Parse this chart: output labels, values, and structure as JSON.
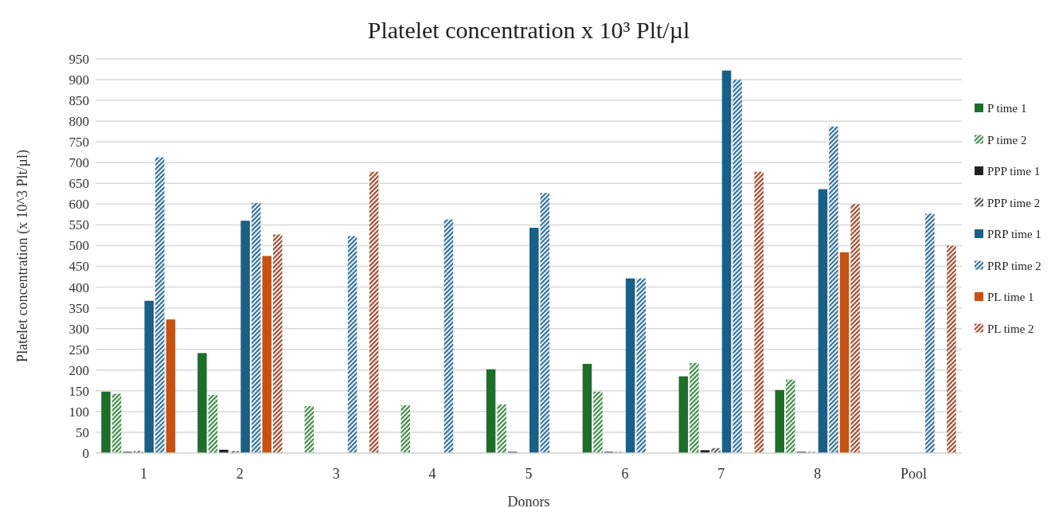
{
  "chart_data": {
    "type": "bar",
    "title": "Platelet concentration x 10³ Plt/µl",
    "xlabel": "Donors",
    "ylabel": "Platelet concentration (x 10^3 Plt/µl)",
    "categories": [
      "1",
      "2",
      "3",
      "4",
      "5",
      "6",
      "7",
      "8",
      "Pool"
    ],
    "series": [
      {
        "name": "P time 1",
        "color": "#1e6e2a",
        "values": [
          148,
          241,
          null,
          null,
          202,
          215,
          185,
          152,
          null
        ]
      },
      {
        "name": "P time 2",
        "color": "#3f8a4a",
        "values": [
          143,
          140,
          113,
          115,
          117,
          148,
          217,
          177,
          null
        ]
      },
      {
        "name": "PPP time 1",
        "color": "#222222",
        "values": [
          3,
          8,
          null,
          null,
          3,
          3,
          7,
          3,
          null
        ]
      },
      {
        "name": "PPP time 2",
        "color": "#555555",
        "values": [
          5,
          5,
          null,
          null,
          null,
          3,
          12,
          3,
          null
        ]
      },
      {
        "name": "PRP time 1",
        "color": "#1a5f85",
        "values": [
          367,
          560,
          null,
          null,
          543,
          421,
          922,
          636,
          null
        ]
      },
      {
        "name": "PRP time 2",
        "color": "#2f6f98",
        "values": [
          713,
          603,
          523,
          563,
          627,
          421,
          900,
          787,
          577
        ]
      },
      {
        "name": "PL time 1",
        "color": "#c55213",
        "values": [
          322,
          475,
          null,
          null,
          null,
          null,
          null,
          484,
          null
        ]
      },
      {
        "name": "PL time 2",
        "color": "#9e4a2c",
        "values": [
          null,
          527,
          678,
          null,
          null,
          null,
          678,
          600,
          500
        ]
      }
    ],
    "ylim": [
      0,
      950
    ],
    "yticks": [
      0,
      50,
      100,
      150,
      200,
      250,
      300,
      350,
      400,
      450,
      500,
      550,
      600,
      650,
      700,
      750,
      800,
      850,
      900,
      950
    ],
    "grid": "y",
    "legend": "right"
  }
}
